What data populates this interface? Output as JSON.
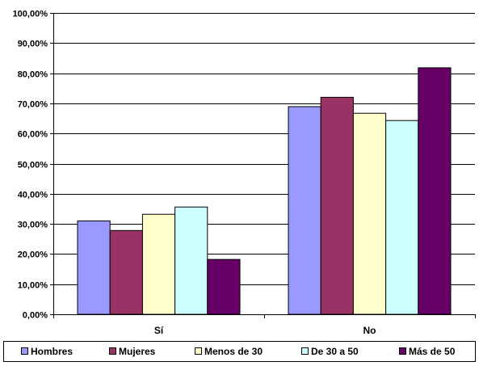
{
  "chart_data": {
    "type": "bar",
    "categories": [
      "Sí",
      "No"
    ],
    "series": [
      {
        "name": "Hombres",
        "values": [
          31.0,
          68.9
        ],
        "color": "#9999ff"
      },
      {
        "name": "Mujeres",
        "values": [
          27.8,
          72.0
        ],
        "color": "#993366"
      },
      {
        "name": "Menos de 30",
        "values": [
          33.2,
          66.7
        ],
        "color": "#ffffcc"
      },
      {
        "name": "De 30 a 50",
        "values": [
          35.6,
          64.3
        ],
        "color": "#ccffff"
      },
      {
        "name": "Más de 50",
        "values": [
          18.2,
          81.8
        ],
        "color": "#660066"
      }
    ],
    "ylim": [
      0,
      100
    ],
    "ytick_values": [
      0,
      10,
      20,
      30,
      40,
      50,
      60,
      70,
      80,
      90,
      100
    ],
    "ytick_labels": [
      "0,00%",
      "10,00%",
      "20,00%",
      "30,00%",
      "40,00%",
      "50,00%",
      "60,00%",
      "70,00%",
      "80,00%",
      "90,00%",
      "100,00%"
    ],
    "grid": true,
    "legend_position": "bottom",
    "title": "",
    "xlabel": "",
    "ylabel": ""
  }
}
